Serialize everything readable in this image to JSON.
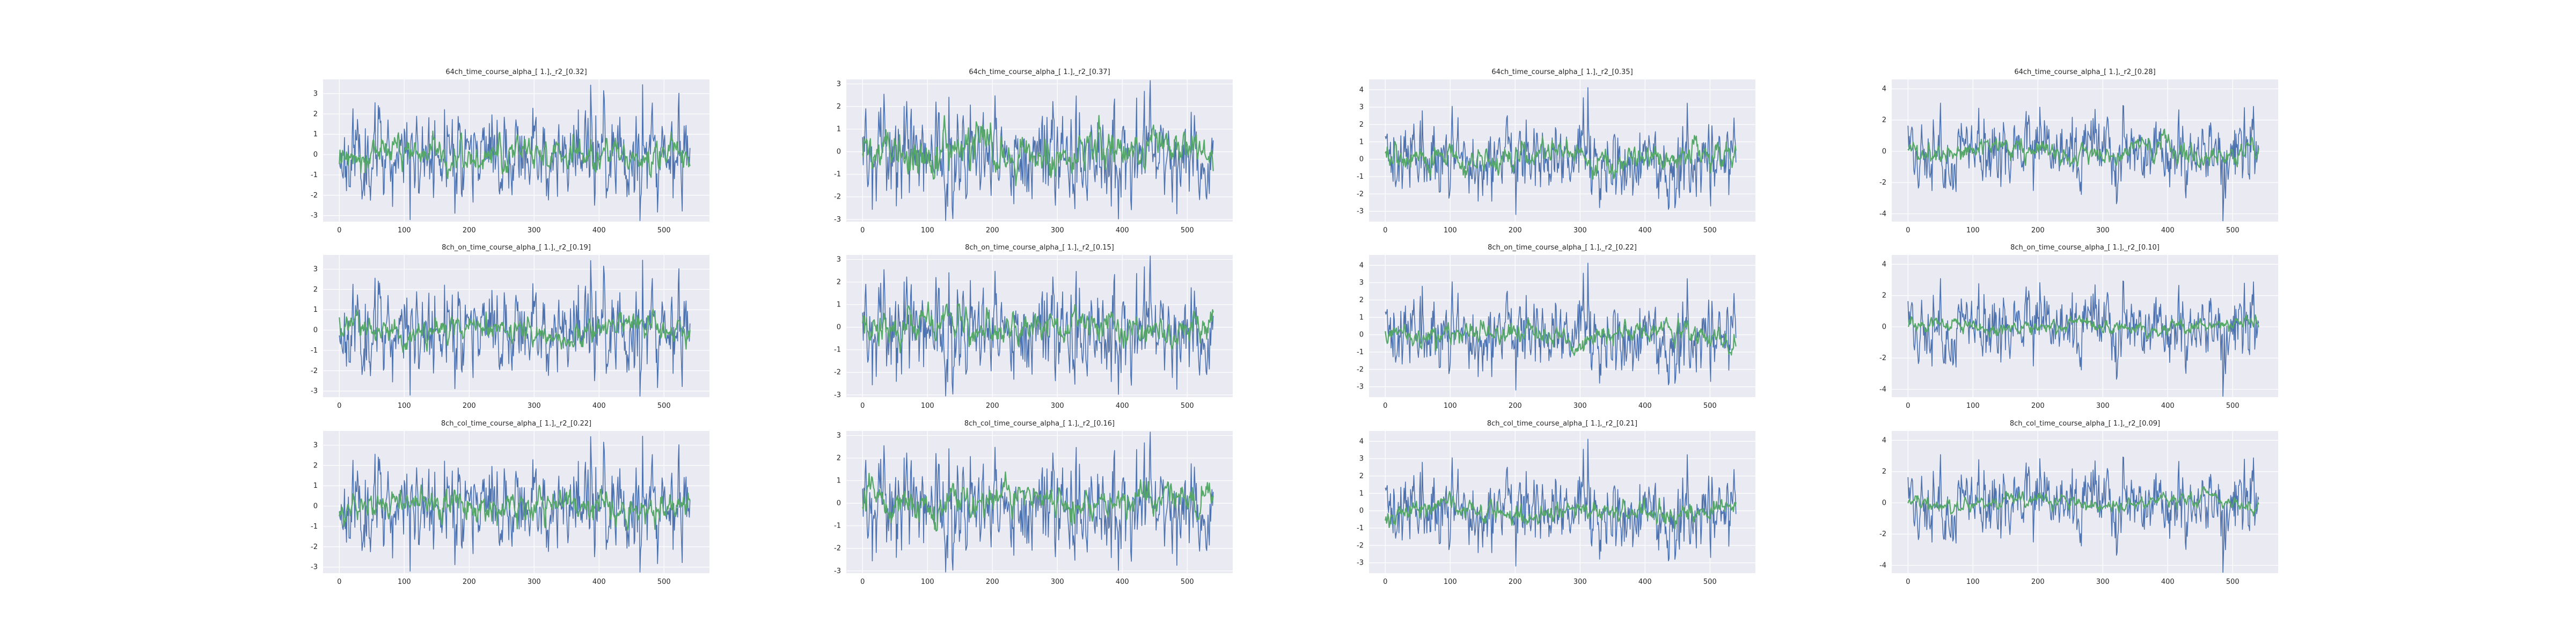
{
  "chart_data": [
    {
      "type": "line",
      "title": "64ch_time_course_alpha_[ 1.],_r2_[0.32]",
      "xticks": [
        0,
        100,
        200,
        300,
        400,
        500
      ],
      "yticks": [
        -3,
        -2,
        -1,
        0,
        1,
        2,
        3
      ],
      "xlim": [
        -25,
        570
      ],
      "ylim": [
        -3.3,
        3.7
      ],
      "grid": true,
      "x": "0..540 (541 samples, step 1)",
      "series": [
        {
          "color": "#4c72b0",
          "amplitude": 1.05,
          "smoothness": "raw",
          "seed": 11
        },
        {
          "color": "#55a868",
          "amplitude": 0.45,
          "smoothness": "smoothed",
          "seed": 12
        }
      ]
    },
    {
      "type": "line",
      "title": "64ch_time_course_alpha_[ 1.],_r2_[0.37]",
      "xticks": [
        0,
        100,
        200,
        300,
        400,
        500
      ],
      "yticks": [
        -3,
        -2,
        -1,
        0,
        1,
        2,
        3
      ],
      "xlim": [
        -25,
        570
      ],
      "ylim": [
        -3.1,
        3.2
      ],
      "grid": true,
      "x": "0..540 (541 samples, step 1)",
      "series": [
        {
          "color": "#4c72b0",
          "amplitude": 1.05,
          "smoothness": "raw",
          "seed": 21
        },
        {
          "color": "#55a868",
          "amplitude": 0.5,
          "smoothness": "smoothed",
          "seed": 22
        }
      ]
    },
    {
      "type": "line",
      "title": "64ch_time_course_alpha_[ 1.],_r2_[0.35]",
      "xticks": [
        0,
        100,
        200,
        300,
        400,
        500
      ],
      "yticks": [
        -3,
        -2,
        -1,
        0,
        1,
        2,
        3,
        4
      ],
      "xlim": [
        -25,
        570
      ],
      "ylim": [
        -3.6,
        4.6
      ],
      "grid": true,
      "x": "0..540 (541 samples, step 1)",
      "series": [
        {
          "color": "#4c72b0",
          "amplitude": 1.05,
          "smoothness": "raw",
          "seed": 31
        },
        {
          "color": "#55a868",
          "amplitude": 0.45,
          "smoothness": "smoothed",
          "seed": 32
        }
      ]
    },
    {
      "type": "line",
      "title": "64ch_time_course_alpha_[ 1.],_r2_[0.28]",
      "xticks": [
        0,
        100,
        200,
        300,
        400,
        500
      ],
      "yticks": [
        -4,
        -2,
        0,
        2,
        4
      ],
      "xlim": [
        -25,
        570
      ],
      "ylim": [
        -4.5,
        4.6
      ],
      "grid": true,
      "x": "0..540 (541 samples, step 1)",
      "series": [
        {
          "color": "#4c72b0",
          "amplitude": 1.1,
          "smoothness": "raw",
          "seed": 41
        },
        {
          "color": "#55a868",
          "amplitude": 0.4,
          "smoothness": "smoothed",
          "seed": 42
        }
      ]
    },
    {
      "type": "line",
      "title": "8ch_on_time_course_alpha_[ 1.],_r2_[0.19]",
      "xticks": [
        0,
        100,
        200,
        300,
        400,
        500
      ],
      "yticks": [
        -3,
        -2,
        -1,
        0,
        1,
        2,
        3
      ],
      "xlim": [
        -25,
        570
      ],
      "ylim": [
        -3.3,
        3.7
      ],
      "grid": true,
      "x": "0..540 (541 samples, step 1)",
      "series": [
        {
          "color": "#4c72b0",
          "amplitude": 1.05,
          "smoothness": "raw",
          "seed": 11
        },
        {
          "color": "#55a868",
          "amplitude": 0.35,
          "smoothness": "smoothed",
          "seed": 52
        }
      ]
    },
    {
      "type": "line",
      "title": "8ch_on_time_course_alpha_[ 1.],_r2_[0.15]",
      "xticks": [
        0,
        100,
        200,
        300,
        400,
        500
      ],
      "yticks": [
        -3,
        -2,
        -1,
        0,
        1,
        2,
        3
      ],
      "xlim": [
        -25,
        570
      ],
      "ylim": [
        -3.1,
        3.2
      ],
      "grid": true,
      "x": "0..540 (541 samples, step 1)",
      "series": [
        {
          "color": "#4c72b0",
          "amplitude": 1.05,
          "smoothness": "raw",
          "seed": 21
        },
        {
          "color": "#55a868",
          "amplitude": 0.4,
          "smoothness": "smoothed",
          "seed": 62
        }
      ]
    },
    {
      "type": "line",
      "title": "8ch_on_time_course_alpha_[ 1.],_r2_[0.22]",
      "xticks": [
        0,
        100,
        200,
        300,
        400,
        500
      ],
      "yticks": [
        -3,
        -2,
        -1,
        0,
        1,
        2,
        3,
        4
      ],
      "xlim": [
        -25,
        570
      ],
      "ylim": [
        -3.6,
        4.6
      ],
      "grid": true,
      "x": "0..540 (541 samples, step 1)",
      "series": [
        {
          "color": "#4c72b0",
          "amplitude": 1.05,
          "smoothness": "raw",
          "seed": 31
        },
        {
          "color": "#55a868",
          "amplitude": 0.35,
          "smoothness": "smoothed",
          "seed": 72
        }
      ]
    },
    {
      "type": "line",
      "title": "8ch_on_time_course_alpha_[ 1.],_r2_[0.10]",
      "xticks": [
        0,
        100,
        200,
        300,
        400,
        500
      ],
      "yticks": [
        -4,
        -2,
        0,
        2,
        4
      ],
      "xlim": [
        -25,
        570
      ],
      "ylim": [
        -4.5,
        4.6
      ],
      "grid": true,
      "x": "0..540 (541 samples, step 1)",
      "series": [
        {
          "color": "#4c72b0",
          "amplitude": 1.1,
          "smoothness": "raw",
          "seed": 41
        },
        {
          "color": "#55a868",
          "amplitude": 0.25,
          "smoothness": "smoothed",
          "seed": 82
        }
      ]
    },
    {
      "type": "line",
      "title": "8ch_col_time_course_alpha_[ 1.],_r2_[0.22]",
      "xticks": [
        0,
        100,
        200,
        300,
        400,
        500
      ],
      "yticks": [
        -3,
        -2,
        -1,
        0,
        1,
        2,
        3
      ],
      "xlim": [
        -25,
        570
      ],
      "ylim": [
        -3.3,
        3.7
      ],
      "grid": true,
      "x": "0..540 (541 samples, step 1)",
      "series": [
        {
          "color": "#4c72b0",
          "amplitude": 1.05,
          "smoothness": "raw",
          "seed": 11
        },
        {
          "color": "#55a868",
          "amplitude": 0.4,
          "smoothness": "smoothed",
          "seed": 92
        }
      ]
    },
    {
      "type": "line",
      "title": "8ch_col_time_course_alpha_[ 1.],_r2_[0.16]",
      "xticks": [
        0,
        100,
        200,
        300,
        400,
        500
      ],
      "yticks": [
        -3,
        -2,
        -1,
        0,
        1,
        2,
        3
      ],
      "xlim": [
        -25,
        570
      ],
      "ylim": [
        -3.1,
        3.2
      ],
      "grid": true,
      "x": "0..540 (541 samples, step 1)",
      "series": [
        {
          "color": "#4c72b0",
          "amplitude": 1.05,
          "smoothness": "raw",
          "seed": 21
        },
        {
          "color": "#55a868",
          "amplitude": 0.4,
          "smoothness": "smoothed",
          "seed": 102
        }
      ]
    },
    {
      "type": "line",
      "title": "8ch_col_time_course_alpha_[ 1.],_r2_[0.21]",
      "xticks": [
        0,
        100,
        200,
        300,
        400,
        500
      ],
      "yticks": [
        -3,
        -2,
        -1,
        0,
        1,
        2,
        3,
        4
      ],
      "xlim": [
        -25,
        570
      ],
      "ylim": [
        -3.6,
        4.6
      ],
      "grid": true,
      "x": "0..540 (541 samples, step 1)",
      "series": [
        {
          "color": "#4c72b0",
          "amplitude": 1.05,
          "smoothness": "raw",
          "seed": 31
        },
        {
          "color": "#55a868",
          "amplitude": 0.35,
          "smoothness": "smoothed",
          "seed": 112
        }
      ]
    },
    {
      "type": "line",
      "title": "8ch_col_time_course_alpha_[ 1.],_r2_[0.09]",
      "xticks": [
        0,
        100,
        200,
        300,
        400,
        500
      ],
      "yticks": [
        -4,
        -2,
        0,
        2,
        4
      ],
      "xlim": [
        -25,
        570
      ],
      "ylim": [
        -4.5,
        4.6
      ],
      "grid": true,
      "x": "0..540 (541 samples, step 1)",
      "series": [
        {
          "color": "#4c72b0",
          "amplitude": 1.1,
          "smoothness": "raw",
          "seed": 41
        },
        {
          "color": "#55a868",
          "amplitude": 0.25,
          "smoothness": "smoothed",
          "seed": 122
        }
      ]
    }
  ]
}
